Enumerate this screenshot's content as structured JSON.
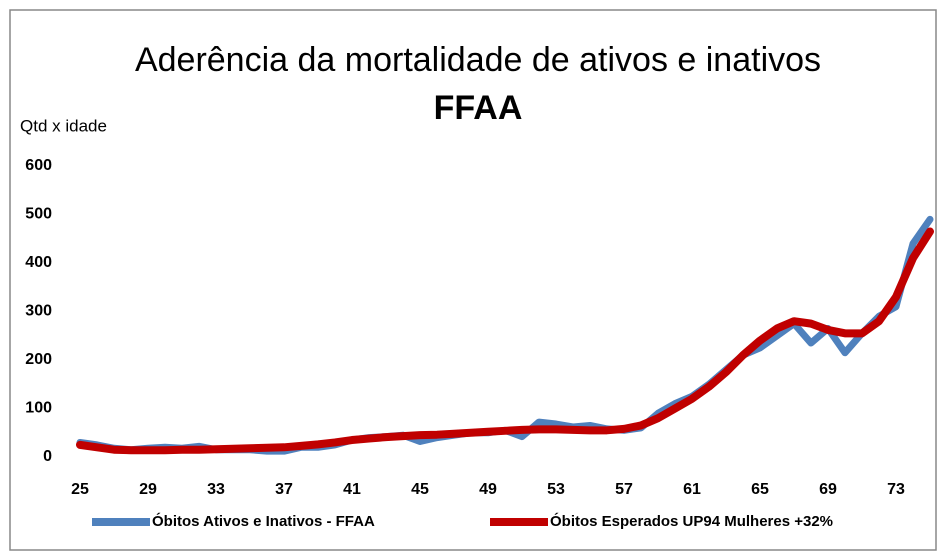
{
  "chart_data": {
    "type": "line",
    "title": [
      "Aderência da mortalidade de ativos e inativos",
      "FFAA"
    ],
    "y_axis_label": "Qtd x idade",
    "categories": [
      "25",
      null,
      null,
      null,
      "29",
      null,
      null,
      null,
      "33",
      null,
      null,
      null,
      "37",
      null,
      null,
      null,
      "41",
      null,
      null,
      null,
      "45",
      null,
      null,
      null,
      "49",
      null,
      null,
      null,
      "53",
      null,
      null,
      null,
      "57",
      null,
      null,
      null,
      "61",
      null,
      null,
      null,
      "65",
      null,
      null,
      null,
      "69",
      null,
      null,
      null,
      "73",
      null,
      null
    ],
    "series": [
      {
        "name": "Óbitos Ativos e Inativos - FFAA",
        "color": "#4f81bd",
        "values": [
          30,
          25,
          18,
          15,
          18,
          20,
          18,
          22,
          15,
          15,
          15,
          12,
          12,
          20,
          20,
          25,
          35,
          40,
          42,
          45,
          32,
          40,
          45,
          50,
          50,
          55,
          42,
          72,
          68,
          62,
          65,
          58,
          55,
          60,
          90,
          110,
          125,
          150,
          180,
          210,
          225,
          250,
          275,
          235,
          265,
          215,
          255,
          290,
          310,
          440,
          490
        ]
      },
      {
        "name": "Óbitos Esperados UP94 Mulheres +32%",
        "color": "#c00000",
        "values": [
          25,
          20,
          15,
          14,
          14,
          14,
          15,
          15,
          16,
          17,
          18,
          19,
          20,
          23,
          26,
          30,
          35,
          38,
          41,
          43,
          45,
          46,
          48,
          50,
          52,
          54,
          56,
          57,
          57,
          56,
          55,
          55,
          58,
          65,
          80,
          100,
          120,
          145,
          175,
          210,
          240,
          265,
          280,
          275,
          262,
          255,
          255,
          280,
          330,
          410,
          465
        ]
      }
    ],
    "ylim": [
      0,
      600
    ],
    "yticks": [
      0,
      100,
      200,
      300,
      400,
      500,
      600
    ],
    "legend": "bottom"
  }
}
